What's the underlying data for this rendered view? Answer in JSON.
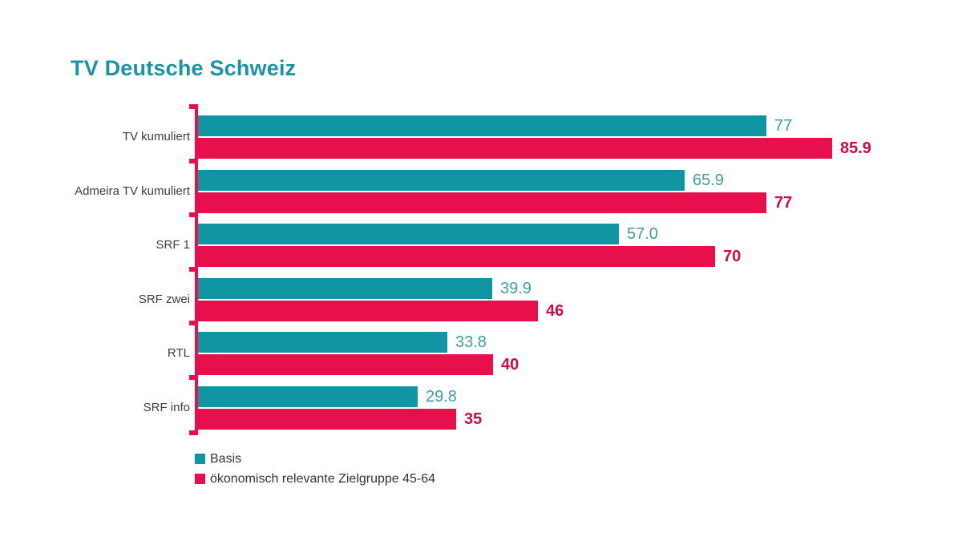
{
  "title": "TV Deutsche Schweiz",
  "chart_data": {
    "type": "bar",
    "orientation": "horizontal",
    "title": "TV Deutsche Schweiz",
    "categories": [
      "TV kumuliert",
      "Admeira TV kumuliert",
      "SRF 1",
      "SRF zwei",
      "RTL",
      "SRF info"
    ],
    "series": [
      {
        "name": "Basis",
        "color": "#0f96a2",
        "value_label_color": "#3f9daa",
        "values": [
          77,
          65.9,
          57.0,
          39.9,
          33.8,
          29.8
        ],
        "value_labels": [
          "77",
          "65.9",
          "57.0",
          "39.9",
          "33.8",
          "29.8"
        ]
      },
      {
        "name": "ökonomisch relevante Zielgruppe 45-64",
        "color": "#e7104d",
        "value_label_color": "#cb0b4a",
        "values": [
          85.9,
          77,
          70,
          46,
          40,
          35
        ],
        "value_labels": [
          "85.9",
          "77",
          "70",
          "46",
          "40",
          "35"
        ]
      }
    ],
    "xlim": [
      0,
      92.6
    ],
    "grid": false,
    "axis_color": "#e7104d",
    "legend_position": "bottom-left",
    "value_labels_shown": true
  },
  "legend": {
    "items": [
      {
        "label": "Basis",
        "color": "#0f96a2"
      },
      {
        "label": "ökonomisch relevante Zielgruppe 45-64",
        "color": "#e7104d"
      }
    ]
  },
  "colors": {
    "series_basis": "#0f96a2",
    "series_zielgruppe": "#e7104d",
    "title": "#1b93a2",
    "category_text": "#3c3c3b",
    "background": "#ffffff"
  }
}
